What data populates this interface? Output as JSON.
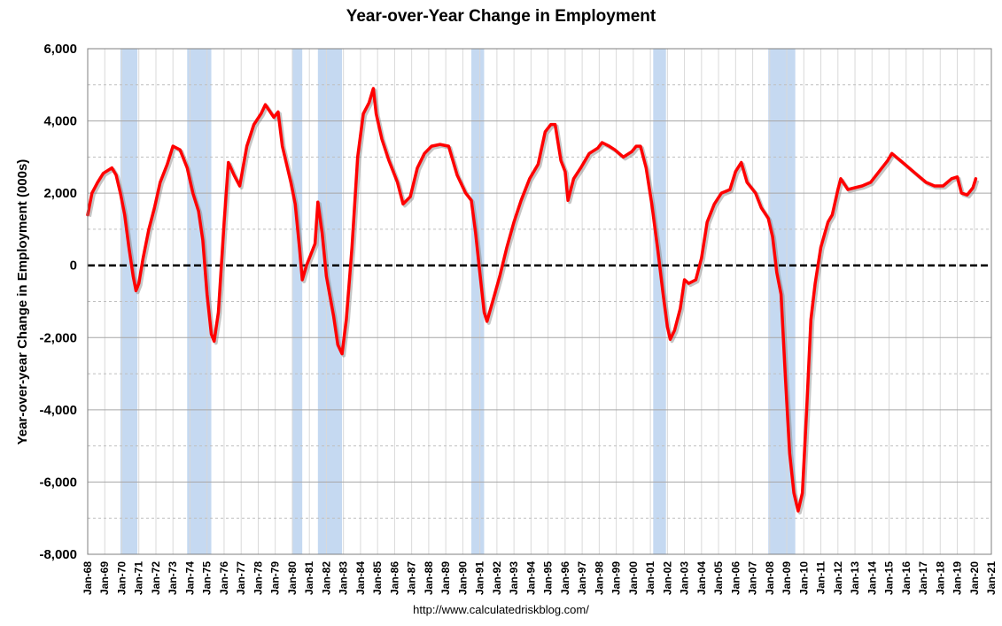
{
  "chart_data": {
    "type": "line",
    "title": "Year-over-Year Change in Employment",
    "xlabel": "",
    "ylabel": "Year-over-year Change in Employment (000s)",
    "source": "http://www.calculatedriskblog.com/",
    "ylim": [
      -8000,
      6000
    ],
    "yticks": [
      6000,
      4000,
      2000,
      0,
      -2000,
      -4000,
      -6000,
      -8000
    ],
    "ytick_labels": [
      "6,000",
      "4,000",
      "2,000",
      "0",
      "-2,000",
      "-4,000",
      "-6,000",
      "-8,000"
    ],
    "xlim": [
      "1968-01",
      "2021-01"
    ],
    "xtick_labels": [
      "Jan-68",
      "Jan-69",
      "Jan-70",
      "Jan-71",
      "Jan-72",
      "Jan-73",
      "Jan-74",
      "Jan-75",
      "Jan-76",
      "Jan-77",
      "Jan-78",
      "Jan-79",
      "Jan-80",
      "Jan-81",
      "Jan-82",
      "Jan-83",
      "Jan-84",
      "Jan-85",
      "Jan-86",
      "Jan-87",
      "Jan-88",
      "Jan-89",
      "Jan-90",
      "Jan-91",
      "Jan-92",
      "Jan-93",
      "Jan-94",
      "Jan-95",
      "Jan-96",
      "Jan-97",
      "Jan-98",
      "Jan-99",
      "Jan-00",
      "Jan-01",
      "Jan-02",
      "Jan-03",
      "Jan-04",
      "Jan-05",
      "Jan-06",
      "Jan-07",
      "Jan-08",
      "Jan-09",
      "Jan-10",
      "Jan-11",
      "Jan-12",
      "Jan-13",
      "Jan-14",
      "Jan-15",
      "Jan-16",
      "Jan-17",
      "Jan-18",
      "Jan-19",
      "Jan-20",
      "Jan-21"
    ],
    "grid": true,
    "legend": "none",
    "recessions": [
      [
        "1969-12",
        "1970-11"
      ],
      [
        "1973-11",
        "1975-03"
      ],
      [
        "1980-01",
        "1980-07"
      ],
      [
        "1981-07",
        "1982-11"
      ],
      [
        "1990-07",
        "1991-03"
      ],
      [
        "2001-03",
        "2001-11"
      ],
      [
        "2007-12",
        "2009-06"
      ]
    ],
    "series": [
      {
        "color": "#ff0000",
        "points": [
          [
            "1968-01",
            1400
          ],
          [
            "1968-04",
            2000
          ],
          [
            "1968-08",
            2300
          ],
          [
            "1968-12",
            2550
          ],
          [
            "1969-06",
            2700
          ],
          [
            "1969-09",
            2500
          ],
          [
            "1969-12",
            2000
          ],
          [
            "1970-03",
            1400
          ],
          [
            "1970-06",
            500
          ],
          [
            "1970-09",
            -300
          ],
          [
            "1970-11",
            -700
          ],
          [
            "1971-01",
            -500
          ],
          [
            "1971-04",
            200
          ],
          [
            "1971-08",
            1000
          ],
          [
            "1971-12",
            1600
          ],
          [
            "1972-04",
            2300
          ],
          [
            "1972-09",
            2800
          ],
          [
            "1973-01",
            3300
          ],
          [
            "1973-06",
            3200
          ],
          [
            "1973-11",
            2700
          ],
          [
            "1974-03",
            2000
          ],
          [
            "1974-07",
            1500
          ],
          [
            "1974-10",
            700
          ],
          [
            "1975-01",
            -800
          ],
          [
            "1975-04",
            -1900
          ],
          [
            "1975-06",
            -2100
          ],
          [
            "1975-09",
            -1300
          ],
          [
            "1976-01",
            1200
          ],
          [
            "1976-04",
            2850
          ],
          [
            "1976-08",
            2500
          ],
          [
            "1976-12",
            2200
          ],
          [
            "1977-05",
            3300
          ],
          [
            "1977-10",
            3900
          ],
          [
            "1978-03",
            4200
          ],
          [
            "1978-06",
            4450
          ],
          [
            "1978-12",
            4100
          ],
          [
            "1979-03",
            4250
          ],
          [
            "1979-06",
            3300
          ],
          [
            "1979-12",
            2300
          ],
          [
            "1980-03",
            1700
          ],
          [
            "1980-06",
            500
          ],
          [
            "1980-08",
            -400
          ],
          [
            "1980-11",
            0
          ],
          [
            "1981-02",
            300
          ],
          [
            "1981-05",
            600
          ],
          [
            "1981-07",
            1750
          ],
          [
            "1981-10",
            900
          ],
          [
            "1982-01",
            -300
          ],
          [
            "1982-06",
            -1400
          ],
          [
            "1982-09",
            -2200
          ],
          [
            "1982-12",
            -2450
          ],
          [
            "1983-03",
            -1500
          ],
          [
            "1983-07",
            500
          ],
          [
            "1983-11",
            3000
          ],
          [
            "1984-03",
            4200
          ],
          [
            "1984-07",
            4500
          ],
          [
            "1984-10",
            4900
          ],
          [
            "1984-12",
            4200
          ],
          [
            "1985-04",
            3500
          ],
          [
            "1985-09",
            2900
          ],
          [
            "1986-03",
            2300
          ],
          [
            "1986-07",
            1700
          ],
          [
            "1986-12",
            1900
          ],
          [
            "1987-05",
            2700
          ],
          [
            "1987-10",
            3100
          ],
          [
            "1988-03",
            3300
          ],
          [
            "1988-09",
            3350
          ],
          [
            "1989-03",
            3300
          ],
          [
            "1989-09",
            2500
          ],
          [
            "1990-03",
            2000
          ],
          [
            "1990-07",
            1800
          ],
          [
            "1990-10",
            900
          ],
          [
            "1991-01",
            -200
          ],
          [
            "1991-04",
            -1300
          ],
          [
            "1991-06",
            -1550
          ],
          [
            "1991-10",
            -1000
          ],
          [
            "1992-03",
            -300
          ],
          [
            "1992-08",
            500
          ],
          [
            "1993-01",
            1200
          ],
          [
            "1993-06",
            1800
          ],
          [
            "1993-12",
            2400
          ],
          [
            "1994-06",
            2800
          ],
          [
            "1994-11",
            3700
          ],
          [
            "1995-03",
            3900
          ],
          [
            "1995-06",
            3900
          ],
          [
            "1995-10",
            2900
          ],
          [
            "1996-01",
            2600
          ],
          [
            "1996-03",
            1800
          ],
          [
            "1996-07",
            2400
          ],
          [
            "1996-12",
            2700
          ],
          [
            "1997-06",
            3100
          ],
          [
            "1997-12",
            3250
          ],
          [
            "1998-03",
            3400
          ],
          [
            "1998-08",
            3300
          ],
          [
            "1998-12",
            3200
          ],
          [
            "1999-06",
            3000
          ],
          [
            "1999-12",
            3150
          ],
          [
            "2000-03",
            3300
          ],
          [
            "2000-06",
            3300
          ],
          [
            "2000-10",
            2700
          ],
          [
            "2001-02",
            1700
          ],
          [
            "2001-06",
            500
          ],
          [
            "2001-10",
            -800
          ],
          [
            "2002-01",
            -1700
          ],
          [
            "2002-03",
            -2050
          ],
          [
            "2002-06",
            -1800
          ],
          [
            "2002-10",
            -1200
          ],
          [
            "2003-01",
            -400
          ],
          [
            "2003-04",
            -500
          ],
          [
            "2003-09",
            -400
          ],
          [
            "2004-01",
            200
          ],
          [
            "2004-05",
            1200
          ],
          [
            "2004-10",
            1700
          ],
          [
            "2005-03",
            2000
          ],
          [
            "2005-09",
            2100
          ],
          [
            "2006-01",
            2600
          ],
          [
            "2006-05",
            2850
          ],
          [
            "2006-09",
            2300
          ],
          [
            "2007-03",
            2000
          ],
          [
            "2007-07",
            1600
          ],
          [
            "2007-12",
            1300
          ],
          [
            "2008-03",
            800
          ],
          [
            "2008-06",
            -200
          ],
          [
            "2008-09",
            -800
          ],
          [
            "2008-12",
            -3100
          ],
          [
            "2009-03",
            -5200
          ],
          [
            "2009-06",
            -6300
          ],
          [
            "2009-09",
            -6800
          ],
          [
            "2009-12",
            -6300
          ],
          [
            "2010-03",
            -4000
          ],
          [
            "2010-06",
            -1500
          ],
          [
            "2010-09",
            -500
          ],
          [
            "2011-01",
            500
          ],
          [
            "2011-06",
            1200
          ],
          [
            "2011-09",
            1400
          ],
          [
            "2012-01",
            2100
          ],
          [
            "2012-03",
            2400
          ],
          [
            "2012-08",
            2100
          ],
          [
            "2013-01",
            2150
          ],
          [
            "2013-06",
            2200
          ],
          [
            "2013-12",
            2300
          ],
          [
            "2014-06",
            2600
          ],
          [
            "2014-12",
            2900
          ],
          [
            "2015-03",
            3100
          ],
          [
            "2015-09",
            2900
          ],
          [
            "2016-03",
            2700
          ],
          [
            "2016-09",
            2500
          ],
          [
            "2017-03",
            2300
          ],
          [
            "2017-09",
            2200
          ],
          [
            "2018-03",
            2200
          ],
          [
            "2018-09",
            2400
          ],
          [
            "2019-01",
            2450
          ],
          [
            "2019-04",
            2000
          ],
          [
            "2019-08",
            1950
          ],
          [
            "2019-12",
            2150
          ],
          [
            "2020-02",
            2400
          ]
        ]
      }
    ]
  }
}
